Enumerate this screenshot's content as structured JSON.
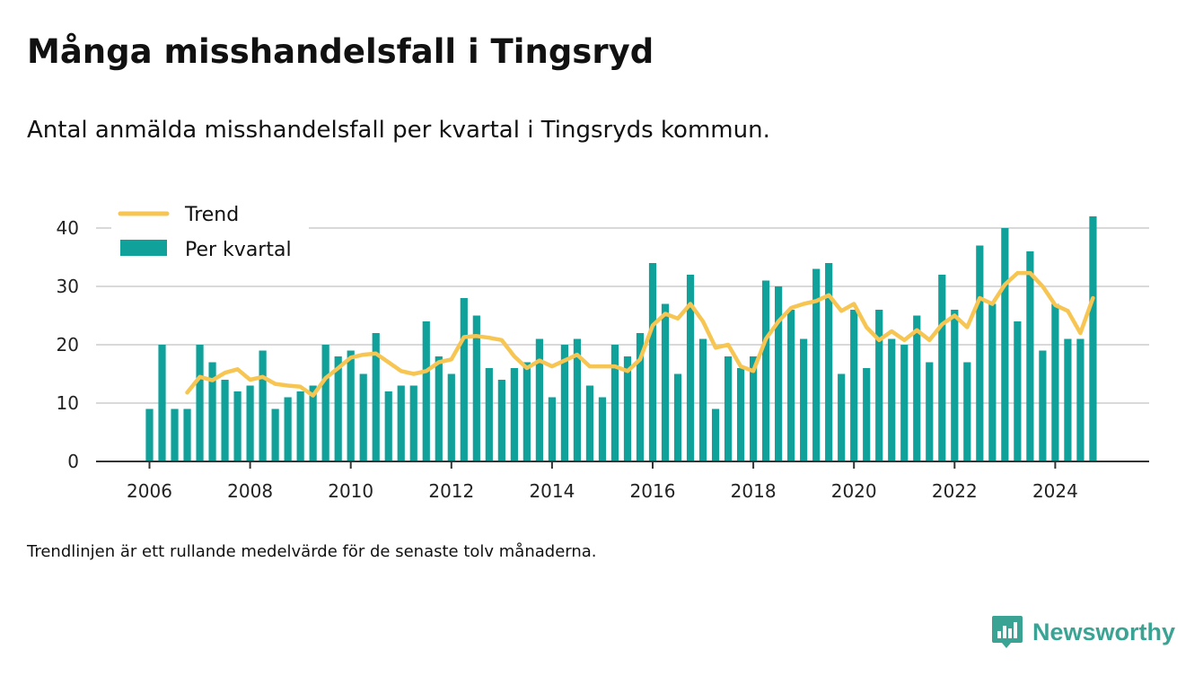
{
  "title": "Många misshandelsfall i Tingsryd",
  "subtitle": "Antal anmälda misshandelsfall per kvartal i Tingsryds kommun.",
  "footnote": "Trendlinjen är ett rullande medelvärde för de senaste tolv månaderna.",
  "brand": {
    "name": "Newsworthy",
    "icon": "newsworthy-logo-icon",
    "color": "#3aa394"
  },
  "colors": {
    "bars": "#10a19b",
    "trend": "#f7c552",
    "grid": "#d9d9d9",
    "axis": "#333333"
  },
  "chart_data": {
    "type": "bar",
    "legend": {
      "trend_label": "Trend",
      "bars_label": "Per kvartal",
      "position": "top-left"
    },
    "x_ticks": [
      "2006",
      "2008",
      "2010",
      "2012",
      "2014",
      "2016",
      "2018",
      "2020",
      "2022",
      "2024"
    ],
    "y_ticks": [
      0,
      10,
      20,
      30,
      40
    ],
    "ylim": [
      0,
      43
    ],
    "grid": true,
    "series": [
      {
        "name": "Per kvartal",
        "type": "bar",
        "x": [
          2006.0,
          2006.25,
          2006.5,
          2006.75,
          2007.0,
          2007.25,
          2007.5,
          2007.75,
          2008.0,
          2008.25,
          2008.5,
          2008.75,
          2009.0,
          2009.25,
          2009.5,
          2009.75,
          2010.0,
          2010.25,
          2010.5,
          2010.75,
          2011.0,
          2011.25,
          2011.5,
          2011.75,
          2012.0,
          2012.25,
          2012.5,
          2012.75,
          2013.0,
          2013.25,
          2013.5,
          2013.75,
          2014.0,
          2014.25,
          2014.5,
          2014.75,
          2015.0,
          2015.25,
          2015.5,
          2015.75,
          2016.0,
          2016.25,
          2016.5,
          2016.75,
          2017.0,
          2017.25,
          2017.5,
          2017.75,
          2018.0,
          2018.25,
          2018.5,
          2018.75,
          2019.0,
          2019.25,
          2019.5,
          2019.75,
          2020.0,
          2020.25,
          2020.5,
          2020.75,
          2021.0,
          2021.25,
          2021.5,
          2021.75,
          2022.0,
          2022.25,
          2022.5,
          2022.75,
          2023.0,
          2023.25,
          2023.5,
          2023.75,
          2024.0,
          2024.25,
          2024.5,
          2024.75
        ],
        "values": [
          9,
          20,
          9,
          9,
          20,
          17,
          14,
          12,
          13,
          19,
          9,
          11,
          12,
          13,
          20,
          18,
          19,
          15,
          22,
          12,
          13,
          13,
          24,
          18,
          15,
          28,
          25,
          16,
          14,
          16,
          17,
          21,
          11,
          20,
          21,
          13,
          11,
          20,
          18,
          22,
          34,
          27,
          15,
          32,
          21,
          9,
          18,
          16,
          18,
          31,
          30,
          26,
          21,
          33,
          34,
          15,
          26,
          16,
          26,
          21,
          20,
          25,
          17,
          32,
          26,
          17,
          37,
          27,
          40,
          24,
          36,
          19,
          27,
          21,
          21,
          42
        ]
      },
      {
        "name": "Trend",
        "type": "line",
        "x": [
          2006.75,
          2007.0,
          2007.25,
          2007.5,
          2007.75,
          2008.0,
          2008.25,
          2008.5,
          2008.75,
          2009.0,
          2009.25,
          2009.5,
          2009.75,
          2010.0,
          2010.25,
          2010.5,
          2010.75,
          2011.0,
          2011.25,
          2011.5,
          2011.75,
          2012.0,
          2012.25,
          2012.5,
          2012.75,
          2013.0,
          2013.25,
          2013.5,
          2013.75,
          2014.0,
          2014.25,
          2014.5,
          2014.75,
          2015.0,
          2015.25,
          2015.5,
          2015.75,
          2016.0,
          2016.25,
          2016.5,
          2016.75,
          2017.0,
          2017.25,
          2017.5,
          2017.75,
          2018.0,
          2018.25,
          2018.5,
          2018.75,
          2019.0,
          2019.25,
          2019.5,
          2019.75,
          2020.0,
          2020.25,
          2020.5,
          2020.75,
          2021.0,
          2021.25,
          2021.5,
          2021.75,
          2022.0,
          2022.25,
          2022.5,
          2022.75,
          2023.0,
          2023.25,
          2023.5,
          2023.75,
          2024.0,
          2024.25,
          2024.5,
          2024.75
        ],
        "values": [
          11.8,
          14.5,
          13.9,
          15.2,
          15.8,
          14.0,
          14.5,
          13.3,
          13.0,
          12.8,
          11.3,
          14.3,
          16.0,
          17.8,
          18.3,
          18.5,
          17.0,
          15.5,
          15.0,
          15.5,
          17.0,
          17.5,
          21.3,
          21.5,
          21.2,
          20.8,
          18.0,
          16.0,
          17.3,
          16.3,
          17.3,
          18.3,
          16.3,
          16.3,
          16.3,
          15.5,
          17.5,
          23.3,
          25.3,
          24.5,
          27.0,
          24.0,
          19.5,
          20.0,
          16.3,
          15.5,
          21.0,
          24.0,
          26.3,
          27.0,
          27.5,
          28.5,
          25.8,
          27.0,
          23.0,
          20.8,
          22.3,
          20.8,
          22.5,
          20.8,
          23.5,
          25.0,
          23.0,
          28.0,
          27.0,
          30.3,
          32.3,
          32.3,
          30.0,
          26.8,
          25.8,
          22.0,
          28.0
        ]
      }
    ]
  }
}
